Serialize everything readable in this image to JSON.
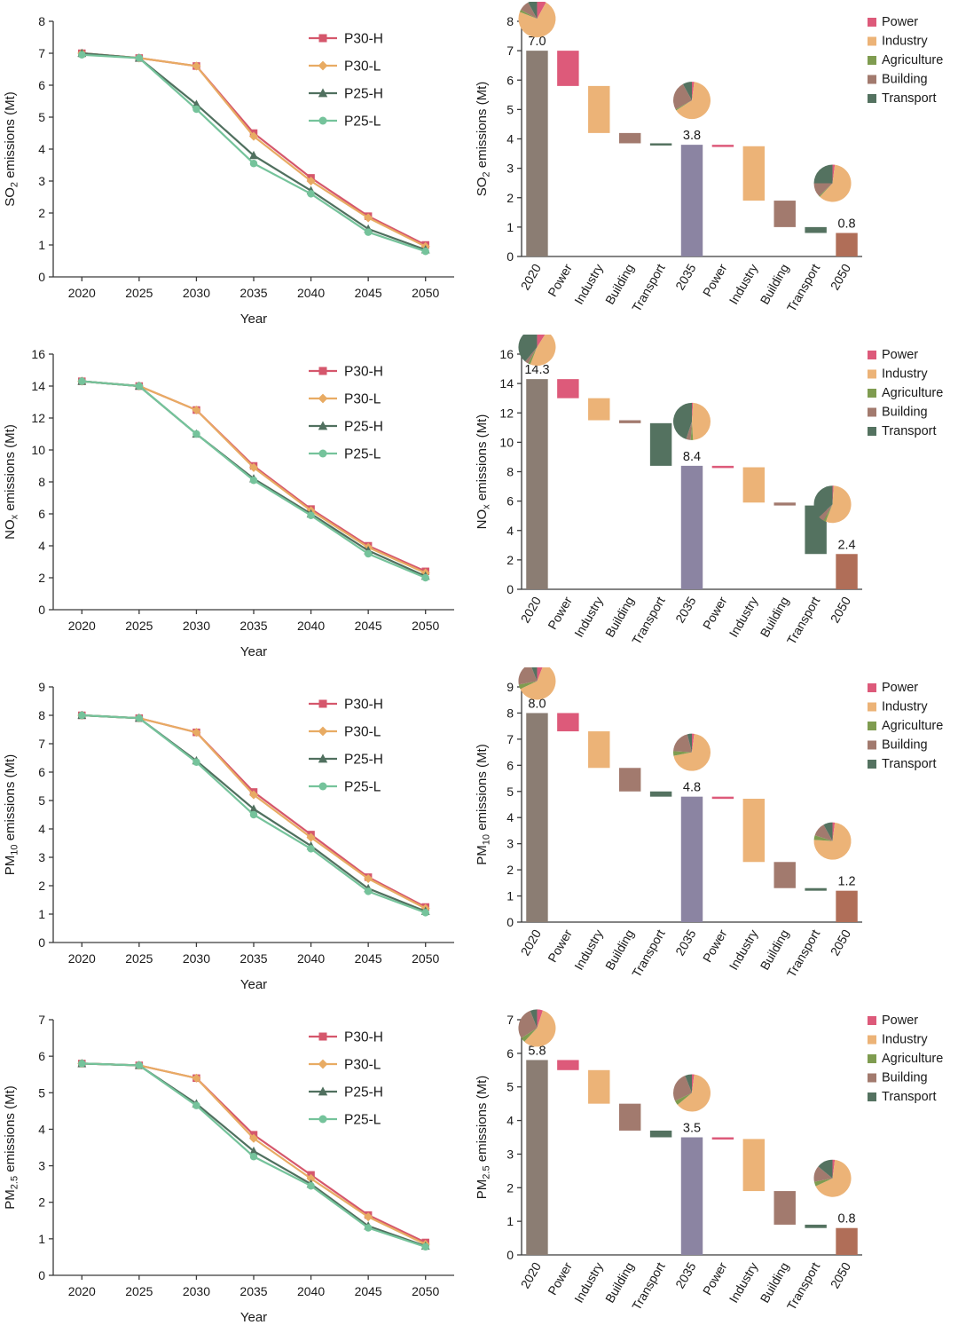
{
  "x_axis": {
    "label": "Year",
    "years": [
      "2020",
      "2025",
      "2030",
      "2035",
      "2040",
      "2045",
      "2050"
    ]
  },
  "line_legend": [
    {
      "name": "P30-H",
      "color": "#d5576c",
      "marker": "square"
    },
    {
      "name": "P30-L",
      "color": "#e8ab63",
      "marker": "diamond"
    },
    {
      "name": "P25-H",
      "color": "#50705f",
      "marker": "triangle"
    },
    {
      "name": "P25-L",
      "color": "#75c39b",
      "marker": "circle"
    }
  ],
  "sector_legend": [
    {
      "name": "Power",
      "color": "#dd5a7a"
    },
    {
      "name": "Industry",
      "color": "#ecb377"
    },
    {
      "name": "Agriculture",
      "color": "#7f9c50"
    },
    {
      "name": "Building",
      "color": "#a27a6e"
    },
    {
      "name": "Transport",
      "color": "#547260"
    }
  ],
  "total_bar_colors": {
    "2020": "#8b7d73",
    "2035": "#8b84a2",
    "2050": "#b06e58"
  },
  "chart_data": [
    {
      "id": "so2",
      "ylabel_parts": [
        {
          "t": "SO"
        },
        {
          "t": "2",
          "sub": true
        },
        {
          "t": " emissions (Mt)"
        }
      ],
      "line": {
        "type": "line",
        "ylim": [
          0,
          8
        ],
        "ytick": 1,
        "categories": [
          "2020",
          "2025",
          "2030",
          "2035",
          "2040",
          "2045",
          "2050"
        ],
        "series": [
          {
            "name": "P30-H",
            "values": [
              7.0,
              6.85,
              6.6,
              4.5,
              3.1,
              1.9,
              1.0
            ]
          },
          {
            "name": "P30-L",
            "values": [
              7.0,
              6.85,
              6.6,
              4.4,
              3.0,
              1.85,
              0.95
            ]
          },
          {
            "name": "P25-H",
            "values": [
              7.0,
              6.85,
              5.4,
              3.8,
              2.7,
              1.5,
              0.85
            ]
          },
          {
            "name": "P25-L",
            "values": [
              6.95,
              6.85,
              5.25,
              3.55,
              2.6,
              1.4,
              0.8
            ]
          }
        ]
      },
      "waterfall": {
        "type": "bar",
        "ylim": [
          0,
          8
        ],
        "ytick": 1,
        "steps": [
          {
            "label": "2020",
            "sector": "total",
            "bottom": 0,
            "top": 7.0,
            "value_label": "7.0"
          },
          {
            "label": "Power",
            "sector": "Power",
            "bottom": 5.8,
            "top": 7.0
          },
          {
            "label": "Industry",
            "sector": "Industry",
            "bottom": 4.2,
            "top": 5.8
          },
          {
            "label": "Building",
            "sector": "Building",
            "bottom": 3.85,
            "top": 4.2
          },
          {
            "label": "Transport",
            "sector": "Transport",
            "bottom": 3.8,
            "top": 3.85
          },
          {
            "label": "2035",
            "sector": "total",
            "bottom": 0,
            "top": 3.8,
            "value_label": "3.8"
          },
          {
            "label": "Power",
            "sector": "Power",
            "bottom": 3.75,
            "top": 3.8
          },
          {
            "label": "Industry",
            "sector": "Industry",
            "bottom": 1.9,
            "top": 3.75
          },
          {
            "label": "Building",
            "sector": "Building",
            "bottom": 1.0,
            "top": 1.9
          },
          {
            "label": "Transport",
            "sector": "Transport",
            "bottom": 0.8,
            "top": 1.0
          },
          {
            "label": "2050",
            "sector": "total",
            "bottom": 0,
            "top": 0.8,
            "value_label": "0.8"
          }
        ],
        "pies": [
          {
            "bar": 0,
            "shares": [
              8,
              73,
              2,
              9,
              8
            ]
          },
          {
            "bar": 5,
            "shares": [
              2,
              64,
              1,
              25,
              8
            ]
          },
          {
            "bar": 10,
            "shares": [
              2,
              60,
              1,
              12,
              25
            ]
          }
        ]
      }
    },
    {
      "id": "nox",
      "ylabel_parts": [
        {
          "t": "NO"
        },
        {
          "t": "x",
          "sub": true
        },
        {
          "t": " emissions (Mt)"
        }
      ],
      "line": {
        "type": "line",
        "ylim": [
          0,
          16
        ],
        "ytick": 2,
        "categories": [
          "2020",
          "2025",
          "2030",
          "2035",
          "2040",
          "2045",
          "2050"
        ],
        "series": [
          {
            "name": "P30-H",
            "values": [
              14.3,
              14.0,
              12.5,
              9.0,
              6.3,
              4.0,
              2.4
            ]
          },
          {
            "name": "P30-L",
            "values": [
              14.3,
              14.0,
              12.5,
              8.9,
              6.2,
              3.9,
              2.3
            ]
          },
          {
            "name": "P25-H",
            "values": [
              14.3,
              14.0,
              11.0,
              8.2,
              6.0,
              3.7,
              2.1
            ]
          },
          {
            "name": "P25-L",
            "values": [
              14.3,
              14.0,
              11.0,
              8.1,
              5.9,
              3.5,
              2.0
            ]
          }
        ]
      },
      "waterfall": {
        "type": "bar",
        "ylim": [
          0,
          16
        ],
        "ytick": 2,
        "steps": [
          {
            "label": "2020",
            "sector": "total",
            "bottom": 0,
            "top": 14.3,
            "value_label": "14.3"
          },
          {
            "label": "Power",
            "sector": "Power",
            "bottom": 13.0,
            "top": 14.3
          },
          {
            "label": "Industry",
            "sector": "Industry",
            "bottom": 11.5,
            "top": 13.0
          },
          {
            "label": "Building",
            "sector": "Building",
            "bottom": 11.3,
            "top": 11.5
          },
          {
            "label": "Transport",
            "sector": "Transport",
            "bottom": 8.4,
            "top": 11.3
          },
          {
            "label": "2035",
            "sector": "total",
            "bottom": 0,
            "top": 8.4,
            "value_label": "8.4"
          },
          {
            "label": "Power",
            "sector": "Power",
            "bottom": 8.3,
            "top": 8.4
          },
          {
            "label": "Industry",
            "sector": "Industry",
            "bottom": 5.9,
            "top": 8.3
          },
          {
            "label": "Building",
            "sector": "Building",
            "bottom": 5.7,
            "top": 5.9
          },
          {
            "label": "Transport",
            "sector": "Transport",
            "bottom": 2.4,
            "top": 5.7
          },
          {
            "label": "2050",
            "sector": "total",
            "bottom": 0,
            "top": 2.4,
            "value_label": "2.4"
          }
        ],
        "pies": [
          {
            "bar": 0,
            "shares": [
              9,
              47,
              2,
              3,
              39
            ]
          },
          {
            "bar": 5,
            "shares": [
              1,
              48,
              2,
              4,
              45
            ]
          },
          {
            "bar": 10,
            "shares": [
              1,
              55,
              2,
              5,
              37
            ]
          }
        ]
      }
    },
    {
      "id": "pm10",
      "ylabel_parts": [
        {
          "t": "PM"
        },
        {
          "t": "10",
          "sub": true
        },
        {
          "t": " emissions (Mt)"
        }
      ],
      "line": {
        "type": "line",
        "ylim": [
          0,
          9
        ],
        "ytick": 1,
        "categories": [
          "2020",
          "2025",
          "2030",
          "2035",
          "2040",
          "2045",
          "2050"
        ],
        "series": [
          {
            "name": "P30-H",
            "values": [
              8.0,
              7.9,
              7.4,
              5.3,
              3.8,
              2.3,
              1.25
            ]
          },
          {
            "name": "P30-L",
            "values": [
              8.0,
              7.9,
              7.4,
              5.2,
              3.7,
              2.25,
              1.2
            ]
          },
          {
            "name": "P25-H",
            "values": [
              8.0,
              7.9,
              6.4,
              4.7,
              3.4,
              1.9,
              1.1
            ]
          },
          {
            "name": "P25-L",
            "values": [
              8.0,
              7.9,
              6.35,
              4.5,
              3.3,
              1.8,
              1.05
            ]
          }
        ]
      },
      "waterfall": {
        "type": "bar",
        "ylim": [
          0,
          9
        ],
        "ytick": 1,
        "steps": [
          {
            "label": "2020",
            "sector": "total",
            "bottom": 0,
            "top": 8.0,
            "value_label": "8.0"
          },
          {
            "label": "Power",
            "sector": "Power",
            "bottom": 7.3,
            "top": 8.0
          },
          {
            "label": "Industry",
            "sector": "Industry",
            "bottom": 5.9,
            "top": 7.3
          },
          {
            "label": "Building",
            "sector": "Building",
            "bottom": 5.0,
            "top": 5.9
          },
          {
            "label": "Transport",
            "sector": "Transport",
            "bottom": 4.8,
            "top": 5.0
          },
          {
            "label": "2035",
            "sector": "total",
            "bottom": 0,
            "top": 4.8,
            "value_label": "4.8"
          },
          {
            "label": "Power",
            "sector": "Power",
            "bottom": 4.72,
            "top": 4.8
          },
          {
            "label": "Industry",
            "sector": "Industry",
            "bottom": 2.3,
            "top": 4.72
          },
          {
            "label": "Building",
            "sector": "Building",
            "bottom": 1.3,
            "top": 2.3
          },
          {
            "label": "Transport",
            "sector": "Transport",
            "bottom": 1.2,
            "top": 1.3
          },
          {
            "label": "2050",
            "sector": "total",
            "bottom": 0,
            "top": 1.2,
            "value_label": "1.2"
          }
        ],
        "pies": [
          {
            "bar": 0,
            "shares": [
              6,
              62,
              4,
              22,
              6
            ]
          },
          {
            "bar": 5,
            "shares": [
              2,
              70,
              4,
              20,
              4
            ]
          },
          {
            "bar": 10,
            "shares": [
              2,
              74,
              4,
              12,
              8
            ]
          }
        ]
      }
    },
    {
      "id": "pm25",
      "ylabel_parts": [
        {
          "t": "PM"
        },
        {
          "t": "2.5",
          "sub": true
        },
        {
          "t": " emissions (Mt)"
        }
      ],
      "line": {
        "type": "line",
        "ylim": [
          0,
          7
        ],
        "ytick": 1,
        "categories": [
          "2020",
          "2025",
          "2030",
          "2035",
          "2040",
          "2045",
          "2050"
        ],
        "series": [
          {
            "name": "P30-H",
            "values": [
              5.8,
              5.75,
              5.4,
              3.85,
              2.75,
              1.65,
              0.9
            ]
          },
          {
            "name": "P30-L",
            "values": [
              5.8,
              5.75,
              5.4,
              3.75,
              2.65,
              1.6,
              0.85
            ]
          },
          {
            "name": "P25-H",
            "values": [
              5.8,
              5.75,
              4.7,
              3.4,
              2.5,
              1.35,
              0.8
            ]
          },
          {
            "name": "P25-L",
            "values": [
              5.8,
              5.75,
              4.65,
              3.25,
              2.45,
              1.3,
              0.78
            ]
          }
        ]
      },
      "waterfall": {
        "type": "bar",
        "ylim": [
          0,
          7
        ],
        "ytick": 1,
        "steps": [
          {
            "label": "2020",
            "sector": "total",
            "bottom": 0,
            "top": 5.8,
            "value_label": "5.8"
          },
          {
            "label": "Power",
            "sector": "Power",
            "bottom": 5.5,
            "top": 5.8
          },
          {
            "label": "Industry",
            "sector": "Industry",
            "bottom": 4.5,
            "top": 5.5
          },
          {
            "label": "Building",
            "sector": "Building",
            "bottom": 3.7,
            "top": 4.5
          },
          {
            "label": "Transport",
            "sector": "Transport",
            "bottom": 3.5,
            "top": 3.7
          },
          {
            "label": "2035",
            "sector": "total",
            "bottom": 0,
            "top": 3.5,
            "value_label": "3.5"
          },
          {
            "label": "Power",
            "sector": "Power",
            "bottom": 3.45,
            "top": 3.5
          },
          {
            "label": "Industry",
            "sector": "Industry",
            "bottom": 1.9,
            "top": 3.45
          },
          {
            "label": "Building",
            "sector": "Building",
            "bottom": 0.9,
            "top": 1.9
          },
          {
            "label": "Transport",
            "sector": "Transport",
            "bottom": 0.8,
            "top": 0.9
          },
          {
            "label": "2050",
            "sector": "total",
            "bottom": 0,
            "top": 0.8,
            "value_label": "0.8"
          }
        ],
        "pies": [
          {
            "bar": 0,
            "shares": [
              5,
              57,
              4,
              28,
              6
            ]
          },
          {
            "bar": 5,
            "shares": [
              2,
              62,
              4,
              26,
              6
            ]
          },
          {
            "bar": 10,
            "shares": [
              2,
              66,
              4,
              14,
              14
            ]
          }
        ]
      }
    }
  ]
}
